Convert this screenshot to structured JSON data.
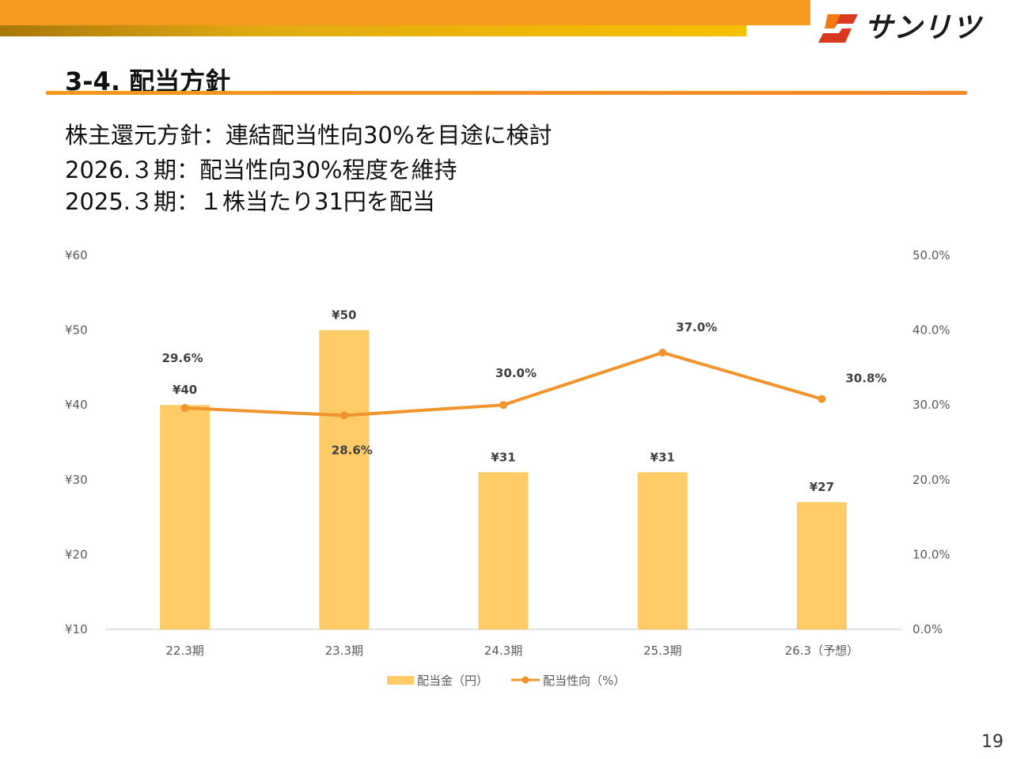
{
  "header": {
    "brand_name": "サンリツ",
    "title": "3-4. 配当方針"
  },
  "policy": {
    "line1": "株主還元方針：連結配当性向30%を目途に検討",
    "line2": "2026.３期：配当性向30%程度を維持",
    "line3": "2025.３期：１株当たり31円を配当"
  },
  "page_number": "19",
  "colors": {
    "bar": "#fecb66",
    "line": "#f0942e",
    "header_orange": "#f7981f",
    "logo_red": "#d93a1f"
  },
  "chart_data": {
    "type": "bar+line",
    "categories": [
      "22.3期",
      "23.3期",
      "24.3期",
      "25.3期",
      "26.3（予想）"
    ],
    "series": [
      {
        "name": "配当金（円）",
        "type": "bar",
        "axis": "left",
        "values": [
          40,
          50,
          31,
          31,
          27
        ],
        "labels": [
          "¥40",
          "¥50",
          "¥31",
          "¥31",
          "¥27"
        ]
      },
      {
        "name": "配当性向（%）",
        "type": "line",
        "axis": "right",
        "values": [
          29.6,
          28.6,
          30.0,
          37.0,
          30.8
        ],
        "labels": [
          "29.6%",
          "28.6%",
          "30.0%",
          "37.0%",
          "30.8%"
        ]
      }
    ],
    "y_left": {
      "min": 10,
      "max": 60,
      "ticks": [
        60,
        50,
        40,
        30,
        20,
        10
      ],
      "tick_labels": [
        "¥60",
        "¥50",
        "¥40",
        "¥30",
        "¥20",
        "¥10"
      ]
    },
    "y_right": {
      "min": 0,
      "max": 50,
      "ticks": [
        50,
        40,
        30,
        20,
        10,
        0
      ],
      "tick_labels": [
        "50.0%",
        "40.0%",
        "30.0%",
        "20.0%",
        "10.0%",
        "0.0%"
      ]
    },
    "grid": false,
    "legend": "bottom"
  }
}
